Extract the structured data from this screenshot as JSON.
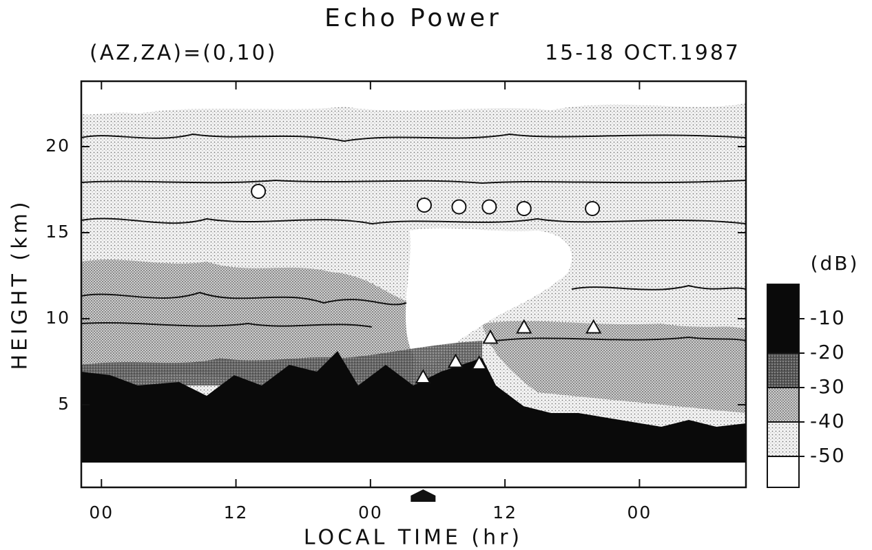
{
  "chart_data": {
    "type": "contour",
    "title": "Echo Power",
    "subtitle_left": "(AZ,ZA)=(0,10)",
    "subtitle_right": "15-18 OCT.1987",
    "x_label": "LOCAL TIME (hr)",
    "y_label": "HEIGHT (km)",
    "xlim": [
      -1.8,
      57.5
    ],
    "xticks": [
      {
        "value": 0,
        "label": "00"
      },
      12,
      {
        "value": 24,
        "label": "00"
      },
      {
        "value": 36,
        "label": "12"
      },
      {
        "value": 48,
        "label": "00"
      }
    ],
    "ylim": [
      0.2,
      23.8
    ],
    "yticks": [
      5,
      10,
      15,
      20
    ],
    "markers": [
      {
        "shape": "circle",
        "x": [
          14.0,
          28.8,
          31.9,
          34.6,
          37.7,
          43.8
        ],
        "y": [
          17.4,
          16.6,
          16.5,
          16.5,
          16.4,
          16.4
        ]
      },
      {
        "shape": "triangle",
        "x": [
          28.7,
          31.6,
          33.7,
          34.7,
          37.7,
          43.9
        ],
        "y": [
          6.6,
          7.5,
          7.4,
          8.9,
          9.5,
          9.5
        ]
      }
    ],
    "arrow_x": 28.7,
    "colorbar": {
      "label": "(dB)",
      "ylim": [
        -59,
        0
      ],
      "ticks": [
        -10,
        -20,
        -30,
        -40,
        -50
      ],
      "levels": [
        -50,
        -40,
        -30,
        -20
      ],
      "colors": [
        "#ffffff",
        "url(#light)",
        "url(#medium)",
        "url(#dense)",
        "#0a0a0a"
      ]
    }
  }
}
